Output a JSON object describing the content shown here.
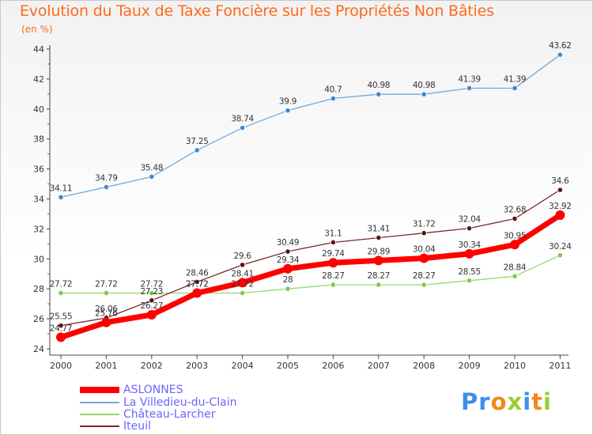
{
  "chart_data": {
    "type": "line",
    "title": "Evolution du Taux de Taxe Foncière sur les Propriétés Non Bâties",
    "subtitle": "(en %)",
    "xlabel": "",
    "ylabel": "",
    "x": [
      "2000",
      "2001",
      "2002",
      "2003",
      "2004",
      "2005",
      "2006",
      "2007",
      "2008",
      "2009",
      "2010",
      "2011"
    ],
    "ylim": [
      24,
      44
    ],
    "yticks": [
      "24",
      "26",
      "28",
      "30",
      "32",
      "34",
      "36",
      "38",
      "40",
      "42",
      "44"
    ],
    "grid": false,
    "legend_position": "bottom-left",
    "series": [
      {
        "name": "ASLONNES",
        "color": "#ff0000",
        "values": [
          24.77,
          25.76,
          26.27,
          27.72,
          28.41,
          29.34,
          29.74,
          29.89,
          30.04,
          30.34,
          30.95,
          32.92
        ],
        "labels": [
          "24.77",
          "25.76",
          "26.27",
          "27.72",
          "28.41",
          "29.34",
          "29.74",
          "29.89",
          "30.04",
          "30.34",
          "30.95",
          "32.92"
        ]
      },
      {
        "name": "La Villedieu-du-Clain",
        "color": "#6fa8dc",
        "values": [
          34.11,
          34.79,
          35.48,
          37.25,
          38.74,
          39.9,
          40.7,
          40.98,
          40.98,
          41.39,
          41.39,
          43.62
        ],
        "labels": [
          "34.11",
          "34.79",
          "35.48",
          "37.25",
          "38.74",
          "39.9",
          "40.7",
          "40.98",
          "40.98",
          "41.39",
          "41.39",
          "43.62"
        ]
      },
      {
        "name": "Château-Larcher",
        "color": "#93d96b",
        "values": [
          27.72,
          27.72,
          27.72,
          27.72,
          27.72,
          28,
          28.27,
          28.27,
          28.27,
          28.55,
          28.84,
          30.24
        ],
        "labels": [
          "27.72",
          "27.72",
          "27.72",
          "27.72",
          "27.72",
          "28",
          "28.27",
          "28.27",
          "28.27",
          "28.55",
          "28.84",
          "30.24"
        ]
      },
      {
        "name": "Iteuil",
        "color": "#7a2a2a",
        "values": [
          25.55,
          26.06,
          27.23,
          28.46,
          29.6,
          30.49,
          31.1,
          31.41,
          31.72,
          32.04,
          32.68,
          34.6
        ],
        "labels": [
          "25.55",
          "26.06",
          "27.23",
          "28.46",
          "29.6",
          "30.49",
          "31.1",
          "31.41",
          "31.72",
          "32.04",
          "32.68",
          "34.6"
        ]
      }
    ]
  },
  "logo": {
    "text": "Proxiti"
  }
}
